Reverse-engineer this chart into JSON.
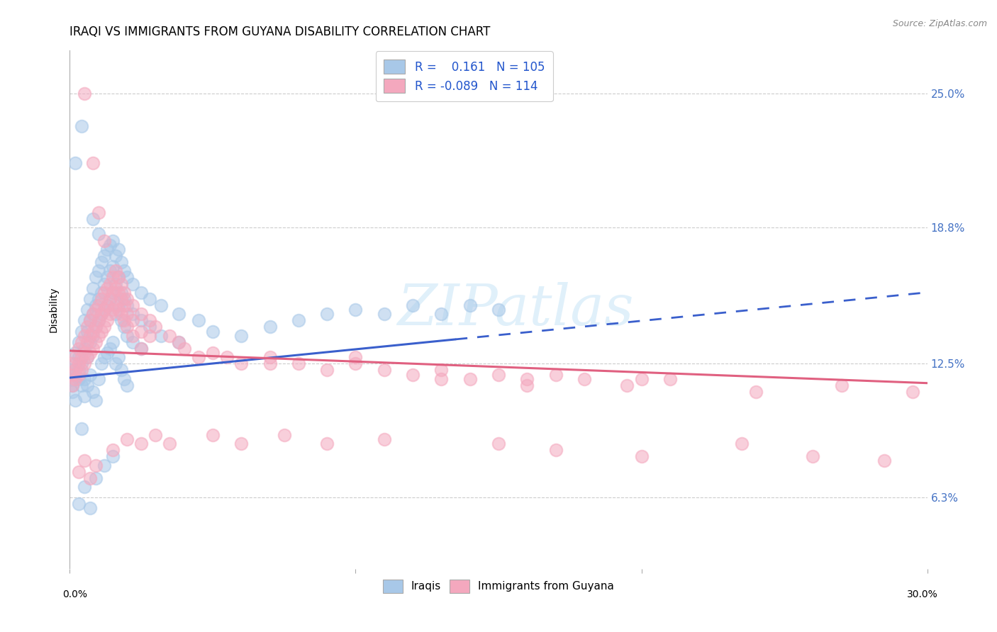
{
  "title": "IRAQI VS IMMIGRANTS FROM GUYANA DISABILITY CORRELATION CHART",
  "source": "Source: ZipAtlas.com",
  "ylabel": "Disability",
  "ytick_labels": [
    "6.3%",
    "12.5%",
    "18.8%",
    "25.0%"
  ],
  "ytick_values": [
    0.063,
    0.125,
    0.188,
    0.25
  ],
  "xlim": [
    0.0,
    0.3
  ],
  "ylim": [
    0.03,
    0.27
  ],
  "watermark": "ZIPatlas",
  "Iraqi_color": "#a8c8e8",
  "Guyana_color": "#f4a8be",
  "trendline_Iraqi_color": "#3a5fcc",
  "trendline_Guyana_color": "#e06080",
  "trendline_Iraqi_x0": 0.0,
  "trendline_Iraqi_y0": 0.1185,
  "trendline_Iraqi_x1": 0.3,
  "trendline_Iraqi_y1": 0.158,
  "trendline_Iraqi_dash_start": 0.135,
  "trendline_Guyana_x0": 0.0,
  "trendline_Guyana_y0": 0.131,
  "trendline_Guyana_x1": 0.3,
  "trendline_Guyana_y1": 0.116,
  "background_color": "#ffffff",
  "grid_color": "#cccccc",
  "Iraqi_scatter": [
    [
      0.001,
      0.122
    ],
    [
      0.001,
      0.118
    ],
    [
      0.001,
      0.115
    ],
    [
      0.001,
      0.112
    ],
    [
      0.002,
      0.125
    ],
    [
      0.002,
      0.12
    ],
    [
      0.002,
      0.13
    ],
    [
      0.002,
      0.108
    ],
    [
      0.003,
      0.135
    ],
    [
      0.003,
      0.128
    ],
    [
      0.003,
      0.118
    ],
    [
      0.003,
      0.122
    ],
    [
      0.004,
      0.14
    ],
    [
      0.004,
      0.115
    ],
    [
      0.004,
      0.125
    ],
    [
      0.004,
      0.095
    ],
    [
      0.005,
      0.145
    ],
    [
      0.005,
      0.132
    ],
    [
      0.005,
      0.118
    ],
    [
      0.005,
      0.11
    ],
    [
      0.006,
      0.15
    ],
    [
      0.006,
      0.14
    ],
    [
      0.006,
      0.128
    ],
    [
      0.006,
      0.115
    ],
    [
      0.007,
      0.155
    ],
    [
      0.007,
      0.145
    ],
    [
      0.007,
      0.135
    ],
    [
      0.007,
      0.12
    ],
    [
      0.008,
      0.16
    ],
    [
      0.008,
      0.148
    ],
    [
      0.008,
      0.138
    ],
    [
      0.008,
      0.112
    ],
    [
      0.009,
      0.165
    ],
    [
      0.009,
      0.152
    ],
    [
      0.009,
      0.142
    ],
    [
      0.009,
      0.108
    ],
    [
      0.01,
      0.168
    ],
    [
      0.01,
      0.155
    ],
    [
      0.01,
      0.145
    ],
    [
      0.01,
      0.118
    ],
    [
      0.011,
      0.172
    ],
    [
      0.011,
      0.158
    ],
    [
      0.011,
      0.148
    ],
    [
      0.011,
      0.125
    ],
    [
      0.012,
      0.175
    ],
    [
      0.012,
      0.162
    ],
    [
      0.012,
      0.15
    ],
    [
      0.012,
      0.128
    ],
    [
      0.013,
      0.178
    ],
    [
      0.013,
      0.165
    ],
    [
      0.013,
      0.152
    ],
    [
      0.013,
      0.13
    ],
    [
      0.014,
      0.18
    ],
    [
      0.014,
      0.168
    ],
    [
      0.014,
      0.155
    ],
    [
      0.014,
      0.132
    ],
    [
      0.015,
      0.182
    ],
    [
      0.015,
      0.17
    ],
    [
      0.015,
      0.158
    ],
    [
      0.015,
      0.135
    ],
    [
      0.016,
      0.175
    ],
    [
      0.016,
      0.162
    ],
    [
      0.016,
      0.148
    ],
    [
      0.016,
      0.125
    ],
    [
      0.017,
      0.178
    ],
    [
      0.017,
      0.165
    ],
    [
      0.017,
      0.152
    ],
    [
      0.017,
      0.128
    ],
    [
      0.018,
      0.172
    ],
    [
      0.018,
      0.158
    ],
    [
      0.018,
      0.145
    ],
    [
      0.018,
      0.122
    ],
    [
      0.019,
      0.168
    ],
    [
      0.019,
      0.155
    ],
    [
      0.019,
      0.142
    ],
    [
      0.019,
      0.118
    ],
    [
      0.02,
      0.165
    ],
    [
      0.02,
      0.152
    ],
    [
      0.02,
      0.138
    ],
    [
      0.02,
      0.115
    ],
    [
      0.022,
      0.162
    ],
    [
      0.022,
      0.148
    ],
    [
      0.022,
      0.135
    ],
    [
      0.025,
      0.158
    ],
    [
      0.025,
      0.145
    ],
    [
      0.025,
      0.132
    ],
    [
      0.028,
      0.155
    ],
    [
      0.028,
      0.142
    ],
    [
      0.032,
      0.152
    ],
    [
      0.032,
      0.138
    ],
    [
      0.038,
      0.148
    ],
    [
      0.038,
      0.135
    ],
    [
      0.045,
      0.145
    ],
    [
      0.05,
      0.14
    ],
    [
      0.06,
      0.138
    ],
    [
      0.07,
      0.142
    ],
    [
      0.08,
      0.145
    ],
    [
      0.09,
      0.148
    ],
    [
      0.1,
      0.15
    ],
    [
      0.11,
      0.148
    ],
    [
      0.12,
      0.152
    ],
    [
      0.13,
      0.148
    ],
    [
      0.14,
      0.152
    ],
    [
      0.15,
      0.15
    ],
    [
      0.002,
      0.218
    ],
    [
      0.004,
      0.235
    ],
    [
      0.008,
      0.192
    ],
    [
      0.01,
      0.185
    ],
    [
      0.003,
      0.06
    ],
    [
      0.005,
      0.068
    ],
    [
      0.007,
      0.058
    ],
    [
      0.009,
      0.072
    ],
    [
      0.012,
      0.078
    ],
    [
      0.015,
      0.082
    ]
  ],
  "Guyana_scatter": [
    [
      0.001,
      0.125
    ],
    [
      0.001,
      0.12
    ],
    [
      0.001,
      0.115
    ],
    [
      0.002,
      0.128
    ],
    [
      0.002,
      0.122
    ],
    [
      0.002,
      0.118
    ],
    [
      0.003,
      0.132
    ],
    [
      0.003,
      0.125
    ],
    [
      0.003,
      0.12
    ],
    [
      0.004,
      0.135
    ],
    [
      0.004,
      0.128
    ],
    [
      0.004,
      0.122
    ],
    [
      0.005,
      0.138
    ],
    [
      0.005,
      0.13
    ],
    [
      0.005,
      0.125
    ],
    [
      0.006,
      0.142
    ],
    [
      0.006,
      0.135
    ],
    [
      0.006,
      0.128
    ],
    [
      0.007,
      0.145
    ],
    [
      0.007,
      0.138
    ],
    [
      0.007,
      0.13
    ],
    [
      0.008,
      0.148
    ],
    [
      0.008,
      0.14
    ],
    [
      0.008,
      0.132
    ],
    [
      0.009,
      0.15
    ],
    [
      0.009,
      0.142
    ],
    [
      0.009,
      0.135
    ],
    [
      0.01,
      0.152
    ],
    [
      0.01,
      0.145
    ],
    [
      0.01,
      0.138
    ],
    [
      0.011,
      0.155
    ],
    [
      0.011,
      0.148
    ],
    [
      0.011,
      0.14
    ],
    [
      0.012,
      0.158
    ],
    [
      0.012,
      0.15
    ],
    [
      0.012,
      0.142
    ],
    [
      0.013,
      0.16
    ],
    [
      0.013,
      0.152
    ],
    [
      0.013,
      0.145
    ],
    [
      0.014,
      0.162
    ],
    [
      0.014,
      0.155
    ],
    [
      0.014,
      0.148
    ],
    [
      0.015,
      0.165
    ],
    [
      0.015,
      0.158
    ],
    [
      0.015,
      0.15
    ],
    [
      0.016,
      0.168
    ],
    [
      0.016,
      0.16
    ],
    [
      0.016,
      0.152
    ],
    [
      0.017,
      0.165
    ],
    [
      0.017,
      0.158
    ],
    [
      0.017,
      0.15
    ],
    [
      0.018,
      0.162
    ],
    [
      0.018,
      0.155
    ],
    [
      0.018,
      0.148
    ],
    [
      0.019,
      0.158
    ],
    [
      0.019,
      0.152
    ],
    [
      0.019,
      0.145
    ],
    [
      0.02,
      0.155
    ],
    [
      0.02,
      0.148
    ],
    [
      0.02,
      0.142
    ],
    [
      0.022,
      0.152
    ],
    [
      0.022,
      0.145
    ],
    [
      0.022,
      0.138
    ],
    [
      0.025,
      0.148
    ],
    [
      0.025,
      0.14
    ],
    [
      0.025,
      0.132
    ],
    [
      0.028,
      0.145
    ],
    [
      0.028,
      0.138
    ],
    [
      0.03,
      0.142
    ],
    [
      0.035,
      0.138
    ],
    [
      0.038,
      0.135
    ],
    [
      0.04,
      0.132
    ],
    [
      0.045,
      0.128
    ],
    [
      0.05,
      0.13
    ],
    [
      0.055,
      0.128
    ],
    [
      0.06,
      0.125
    ],
    [
      0.07,
      0.128
    ],
    [
      0.08,
      0.125
    ],
    [
      0.09,
      0.122
    ],
    [
      0.1,
      0.125
    ],
    [
      0.11,
      0.122
    ],
    [
      0.12,
      0.12
    ],
    [
      0.13,
      0.122
    ],
    [
      0.14,
      0.118
    ],
    [
      0.15,
      0.12
    ],
    [
      0.16,
      0.118
    ],
    [
      0.17,
      0.12
    ],
    [
      0.18,
      0.118
    ],
    [
      0.195,
      0.115
    ],
    [
      0.21,
      0.118
    ],
    [
      0.005,
      0.25
    ],
    [
      0.008,
      0.218
    ],
    [
      0.01,
      0.195
    ],
    [
      0.012,
      0.182
    ],
    [
      0.003,
      0.075
    ],
    [
      0.005,
      0.08
    ],
    [
      0.007,
      0.072
    ],
    [
      0.009,
      0.078
    ],
    [
      0.015,
      0.085
    ],
    [
      0.02,
      0.09
    ],
    [
      0.025,
      0.088
    ],
    [
      0.03,
      0.092
    ],
    [
      0.035,
      0.088
    ],
    [
      0.05,
      0.092
    ],
    [
      0.06,
      0.088
    ],
    [
      0.075,
      0.092
    ],
    [
      0.09,
      0.088
    ],
    [
      0.11,
      0.09
    ],
    [
      0.15,
      0.088
    ],
    [
      0.17,
      0.085
    ],
    [
      0.2,
      0.082
    ],
    [
      0.235,
      0.088
    ],
    [
      0.26,
      0.082
    ],
    [
      0.285,
      0.08
    ],
    [
      0.07,
      0.125
    ],
    [
      0.1,
      0.128
    ],
    [
      0.13,
      0.118
    ],
    [
      0.16,
      0.115
    ],
    [
      0.2,
      0.118
    ],
    [
      0.24,
      0.112
    ],
    [
      0.27,
      0.115
    ],
    [
      0.295,
      0.112
    ]
  ]
}
